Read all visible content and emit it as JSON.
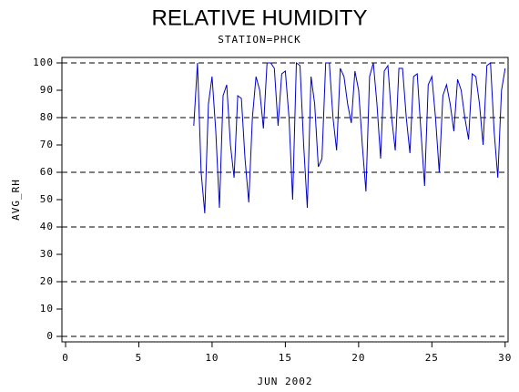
{
  "chart_data": {
    "type": "line",
    "title": "RELATIVE HUMIDITY",
    "subtitle": "STATION=PHCK",
    "x_label": "JUN 2002",
    "y_label": "AVG_RH",
    "xlim": [
      -0.25,
      30.2
    ],
    "ylim": [
      -2,
      102
    ],
    "xticks": [
      0,
      5,
      10,
      15,
      20,
      25,
      30
    ],
    "yticks": [
      0,
      10,
      20,
      30,
      40,
      50,
      60,
      70,
      80,
      90,
      100
    ],
    "gridlines": [
      0,
      20,
      40,
      60,
      80,
      100
    ],
    "grid_style": "dashed",
    "x": [
      8.75,
      9,
      9.25,
      9.5,
      9.75,
      10,
      10.25,
      10.5,
      10.75,
      11,
      11.25,
      11.5,
      11.75,
      12,
      12.25,
      12.5,
      12.75,
      13,
      13.25,
      13.5,
      13.75,
      14,
      14.25,
      14.5,
      14.75,
      15,
      15.25,
      15.5,
      15.75,
      16,
      16.25,
      16.5,
      16.75,
      17,
      17.25,
      17.5,
      17.75,
      18,
      18.25,
      18.5,
      18.75,
      19,
      19.25,
      19.5,
      19.75,
      20,
      20.25,
      20.5,
      20.75,
      21,
      21.25,
      21.5,
      21.75,
      22,
      22.25,
      22.5,
      22.75,
      23,
      23.25,
      23.5,
      23.75,
      24,
      24.25,
      24.5,
      24.75,
      25,
      25.25,
      25.5,
      25.75,
      26,
      26.25,
      26.5,
      26.75,
      27,
      27.25,
      27.5,
      27.75,
      28,
      28.25,
      28.5,
      28.75,
      29,
      29.25,
      29.5,
      29.75,
      30
    ],
    "series": [
      {
        "name": "AVG_RH",
        "color": "#0000cc",
        "values": [
          77,
          100,
          60,
          45,
          85,
          95,
          75,
          47,
          88,
          92,
          70,
          58,
          88,
          87,
          65,
          49,
          80,
          95,
          90,
          76,
          100,
          100,
          98,
          77,
          96,
          97,
          80,
          50,
          100,
          99,
          70,
          47,
          95,
          85,
          62,
          65,
          100,
          100,
          80,
          68,
          98,
          95,
          85,
          78,
          97,
          90,
          70,
          53,
          95,
          100,
          85,
          65,
          97,
          99,
          80,
          68,
          98,
          98,
          80,
          67,
          95,
          96,
          75,
          55,
          92,
          95,
          80,
          60,
          88,
          92,
          85,
          75,
          94,
          90,
          80,
          72,
          96,
          95,
          85,
          70,
          99,
          100,
          75,
          58,
          90,
          98
        ]
      }
    ]
  }
}
